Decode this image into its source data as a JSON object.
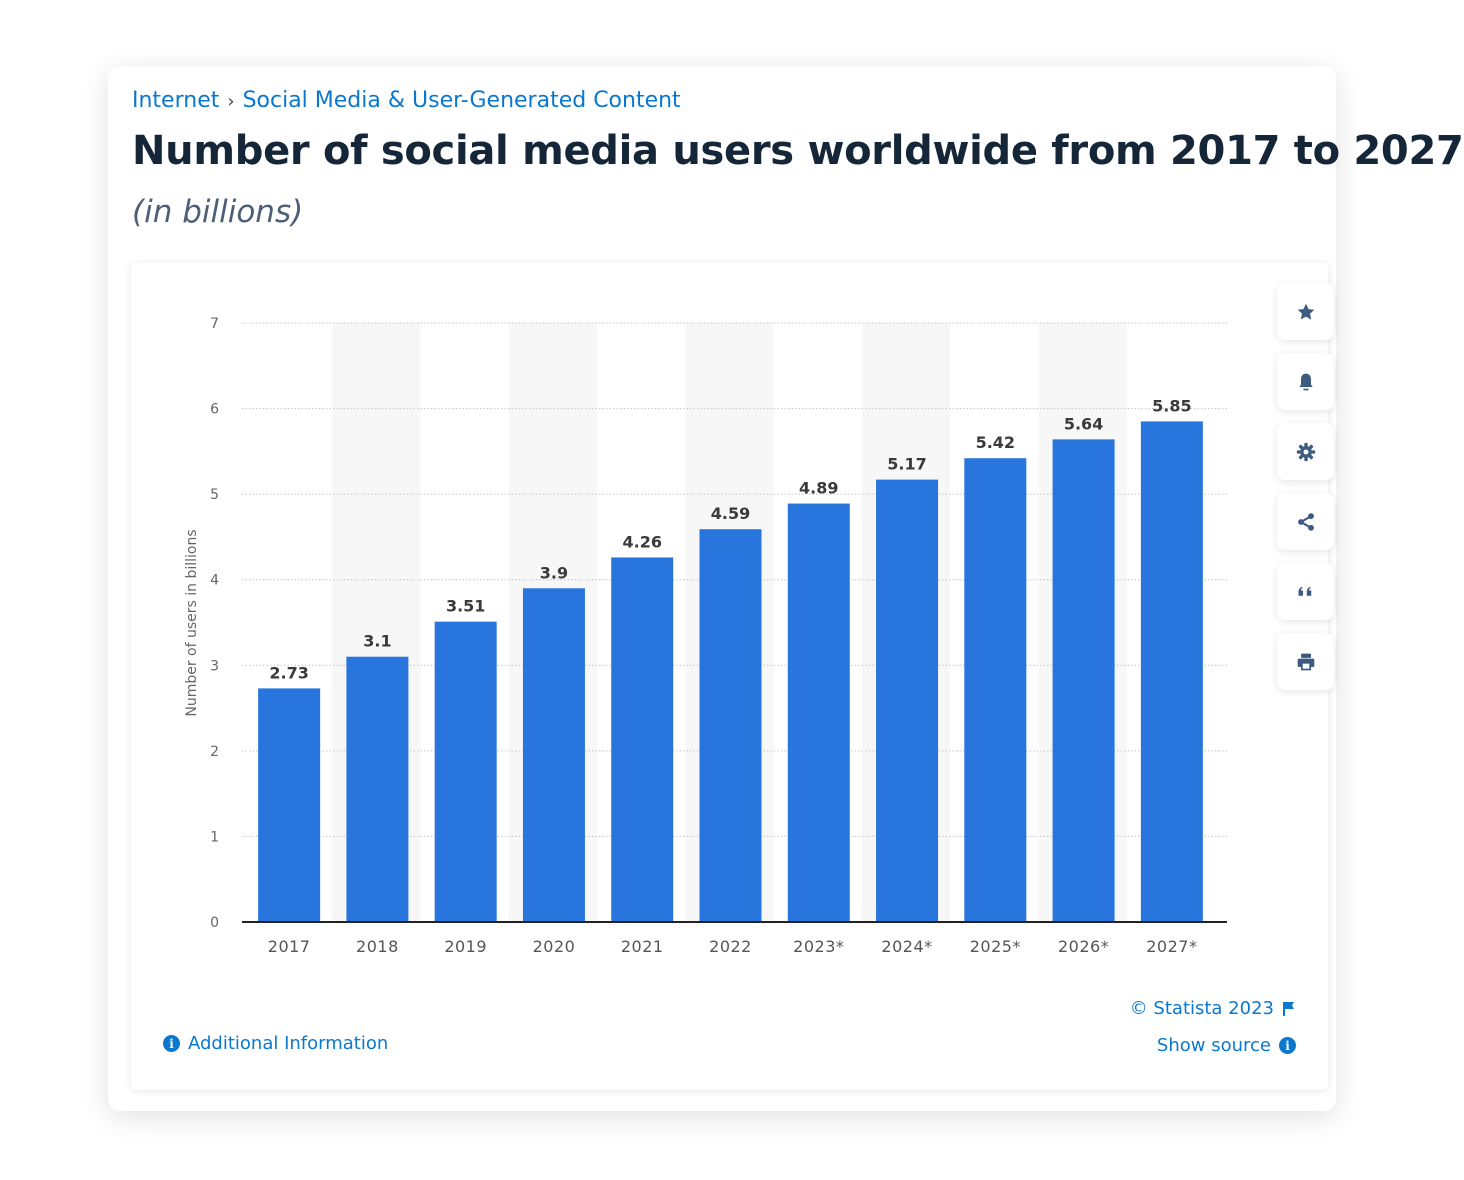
{
  "breadcrumb": {
    "items": [
      "Internet",
      "Social Media & User-Generated Content"
    ],
    "separator": "›"
  },
  "header": {
    "title": "Number of social media users worldwide from 2017 to 2027",
    "subtitle": "(in billions)"
  },
  "toolbar": {
    "icons": [
      "star-icon",
      "bell-icon",
      "gear-icon",
      "share-icon",
      "quote-icon",
      "print-icon"
    ]
  },
  "footer": {
    "additional_info": "Additional Information",
    "copyright": "© Statista 2023",
    "show_source": "Show source",
    "info_glyph": "i"
  },
  "colors": {
    "bar": "#2876dd",
    "link": "#0b78d0",
    "title": "#152639"
  },
  "chart_data": {
    "type": "bar",
    "title": "Number of social media users worldwide from 2017 to 2027",
    "xlabel": "",
    "ylabel": "Number of users in billions",
    "categories": [
      "2017",
      "2018",
      "2019",
      "2020",
      "2021",
      "2022",
      "2023*",
      "2024*",
      "2025*",
      "2026*",
      "2027*"
    ],
    "values": [
      2.73,
      3.1,
      3.51,
      3.9,
      4.26,
      4.59,
      4.89,
      5.17,
      5.42,
      5.64,
      5.85
    ],
    "data_labels": [
      "2.73",
      "3.1",
      "3.51",
      "3.9",
      "4.26",
      "4.59",
      "4.89",
      "5.17",
      "5.42",
      "5.64",
      "5.85"
    ],
    "ylim": [
      0,
      7
    ],
    "yticks": [
      "0",
      "1",
      "2",
      "3",
      "4",
      "5",
      "6",
      "7"
    ],
    "grid": true
  }
}
